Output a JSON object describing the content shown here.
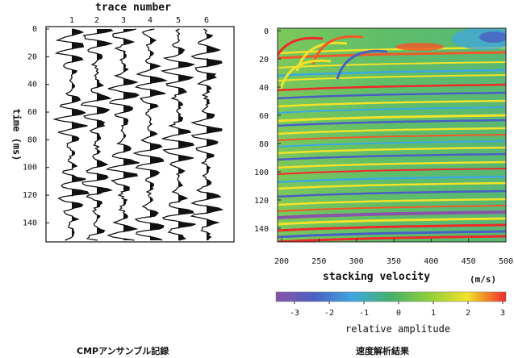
{
  "left_panel": {
    "title": "trace number",
    "ylabel": "time (ms)",
    "trace_ticks": [
      "1",
      "2",
      "3",
      "4",
      "5",
      "6"
    ],
    "time_ticks": [
      "0",
      "20",
      "40",
      "60",
      "80",
      "100",
      "120",
      "140"
    ],
    "caption": "CMPアンサンブル記録"
  },
  "right_panel": {
    "xlabel": "stacking velocity",
    "unit": "(m/s)",
    "x_ticks": [
      "200",
      "250",
      "300",
      "350",
      "400",
      "450",
      "500"
    ],
    "y_ticks": [
      "0",
      "20",
      "40",
      "60",
      "80",
      "100",
      "120",
      "140"
    ],
    "caption": "速度解析結果"
  },
  "colorbar": {
    "label": "relative amplitude",
    "ticks": [
      "-3",
      "-2",
      "-1",
      "0",
      "1",
      "2",
      "3"
    ],
    "colors": [
      "#8a54a8",
      "#4a5fc4",
      "#3fa7e0",
      "#46b06a",
      "#8fcf3a",
      "#f2e22a",
      "#ee2a2a"
    ]
  }
}
